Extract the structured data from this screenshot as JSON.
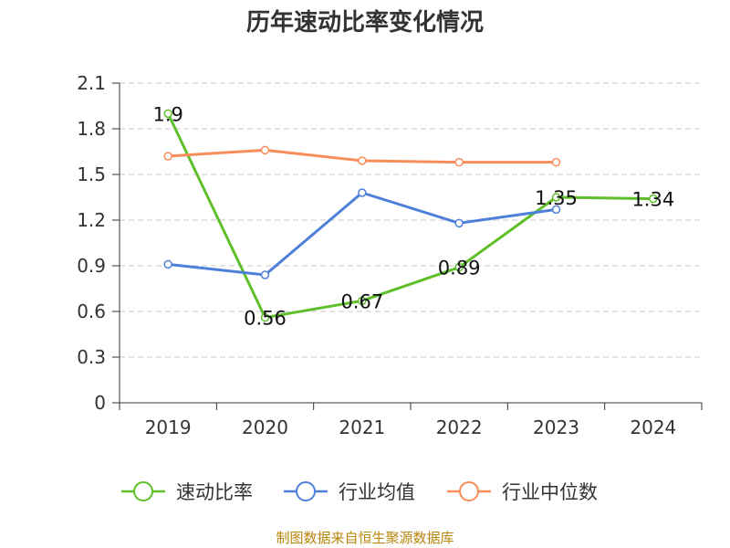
{
  "chart_data": {
    "type": "line",
    "title": "历年速动比率变化情况",
    "categories": [
      "2019",
      "2020",
      "2021",
      "2022",
      "2023",
      "2024"
    ],
    "ylim": [
      0,
      2.1
    ],
    "yticks": [
      "0",
      "0.3",
      "0.6",
      "0.9",
      "1.2",
      "1.5",
      "1.8",
      "2.1"
    ],
    "grid": true,
    "legend_position": "bottom",
    "series": [
      {
        "name": "速动比率",
        "color": "#5fbf2a",
        "values": [
          1.9,
          0.56,
          0.67,
          0.89,
          1.35,
          1.34
        ],
        "data_labels": [
          "1.9",
          "0.56",
          "0.67",
          "0.89",
          "1.35",
          "1.34"
        ]
      },
      {
        "name": "行业均值",
        "color": "#4e7fd9",
        "values": [
          0.91,
          0.84,
          1.38,
          1.18,
          1.27,
          null
        ]
      },
      {
        "name": "行业中位数",
        "color": "#f98d5a",
        "values": [
          1.62,
          1.66,
          1.59,
          1.58,
          1.58,
          null
        ]
      }
    ],
    "source": "制图数据来自恒生聚源数据库"
  }
}
